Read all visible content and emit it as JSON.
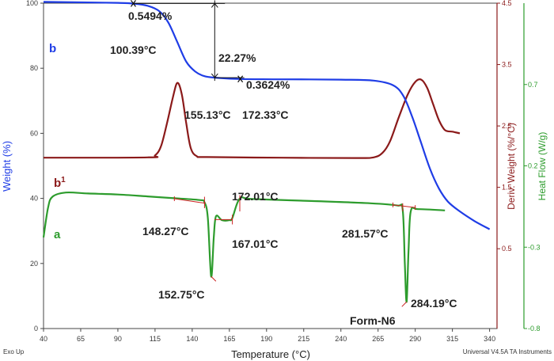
{
  "chart_data": {
    "type": "line",
    "x_axis": {
      "label": "Temperature (°C)",
      "range": [
        40,
        345
      ],
      "ticks": [
        40,
        65,
        90,
        115,
        140,
        165,
        190,
        215,
        240,
        265,
        290,
        315,
        340
      ]
    },
    "y_left": {
      "label": "Weight (%)",
      "range": [
        0,
        100
      ],
      "ticks": [
        0,
        20,
        40,
        60,
        80,
        100
      ],
      "color": "#1f3de6"
    },
    "y_deriv": {
      "label": "Deriv. Weight (%/°C)",
      "range": [
        -0.8,
        4.5
      ],
      "ticks": [
        "4.5",
        "3.5",
        "2.5",
        "1.5",
        "0.5"
      ],
      "color": "#8b1a1a"
    },
    "y_heat": {
      "label": "Heat Flow (W/g)",
      "range": [
        -0.8,
        1.2
      ],
      "ticks": [
        "0.7",
        "0.2",
        "-0.3",
        "-0.8"
      ],
      "color": "#2d9c2d"
    },
    "series": [
      {
        "name": "b",
        "color": "#1f3de6",
        "points": [
          [
            40,
            100.4
          ],
          [
            90,
            100.1
          ],
          [
            100.39,
            99.85
          ],
          [
            110,
            99.2
          ],
          [
            118,
            97.5
          ],
          [
            124,
            94
          ],
          [
            130,
            88
          ],
          [
            136,
            82
          ],
          [
            142,
            79
          ],
          [
            148,
            77.6
          ],
          [
            155.13,
            77.1
          ],
          [
            172.33,
            76.7
          ],
          [
            200,
            76.6
          ],
          [
            240,
            76.5
          ],
          [
            262,
            76.2
          ],
          [
            275,
            74.8
          ],
          [
            282,
            71.5
          ],
          [
            288,
            65
          ],
          [
            294,
            57
          ],
          [
            300,
            49
          ],
          [
            306,
            43
          ],
          [
            312,
            39
          ],
          [
            320,
            36
          ],
          [
            330,
            33
          ],
          [
            340,
            30.5
          ]
        ]
      },
      {
        "name": "b1",
        "color": "#8b1a1a",
        "points": [
          [
            40,
            52.5
          ],
          [
            110,
            52.6
          ],
          [
            115,
            53.2
          ],
          [
            119,
            56
          ],
          [
            123,
            63
          ],
          [
            127,
            71
          ],
          [
            130,
            75.5
          ],
          [
            133,
            72
          ],
          [
            136,
            63
          ],
          [
            139,
            55.5
          ],
          [
            143,
            53
          ],
          [
            150,
            52.7
          ],
          [
            200,
            52.5
          ],
          [
            250,
            52.4
          ],
          [
            262,
            52.6
          ],
          [
            268,
            54
          ],
          [
            273,
            57.5
          ],
          [
            279,
            65
          ],
          [
            285,
            72
          ],
          [
            290,
            75.8
          ],
          [
            294,
            76.5
          ],
          [
            298,
            74
          ],
          [
            302,
            69
          ],
          [
            306,
            64
          ],
          [
            310,
            61
          ],
          [
            315,
            60.5
          ],
          [
            320,
            60
          ]
        ]
      },
      {
        "name": "a",
        "color": "#2d9c2d",
        "points": [
          [
            40,
            28
          ],
          [
            43,
            37
          ],
          [
            46,
            40.5
          ],
          [
            55,
            41.8
          ],
          [
            70,
            41.5
          ],
          [
            90,
            41.2
          ],
          [
            110,
            40.6
          ],
          [
            130,
            40
          ],
          [
            145,
            39.5
          ],
          [
            148.27,
            38.8
          ],
          [
            150.5,
            34
          ],
          [
            152.75,
            16
          ],
          [
            154.5,
            28
          ],
          [
            156,
            34.5
          ],
          [
            160,
            33.3
          ],
          [
            165,
            33.3
          ],
          [
            167.01,
            34
          ],
          [
            172.01,
            40
          ],
          [
            180,
            39.8
          ],
          [
            220,
            39.2
          ],
          [
            260,
            38.5
          ],
          [
            278,
            37.8
          ],
          [
            281.57,
            36.5
          ],
          [
            283,
            20
          ],
          [
            284.19,
            8.2
          ],
          [
            285.5,
            24
          ],
          [
            287,
            36
          ],
          [
            292,
            36.7
          ],
          [
            310,
            36.3
          ]
        ]
      }
    ],
    "series_labels": {
      "b": "b",
      "b1": "b",
      "b1_sup": "1",
      "a": "a"
    },
    "annotations": [
      "0.5494%",
      "100.39°C",
      "22.27%",
      "0.3624%",
      "155.13°C",
      "172.33°C",
      "172.01°C",
      "148.27°C",
      "167.01°C",
      "281.57°C",
      "152.75°C",
      "284.19°C",
      "Form-N6"
    ],
    "corner_left": "Exo Up",
    "corner_right": "Universal V4.5A TA Instruments",
    "grid": false,
    "legend": "none"
  }
}
